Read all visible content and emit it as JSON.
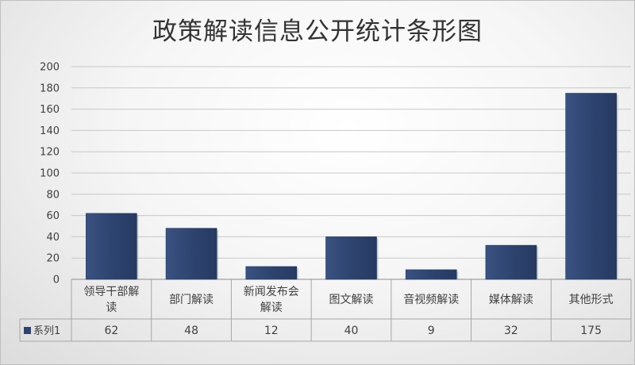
{
  "chart_data": {
    "type": "bar",
    "title": "政策解读信息公开统计条形图",
    "categories": [
      "领导干部解读",
      "部门解读",
      "新闻发布会解读",
      "图文解读",
      "音视频解读",
      "媒体解读",
      "其他形式"
    ],
    "category_lines": [
      [
        "领导干部解",
        "读"
      ],
      [
        "部门解读"
      ],
      [
        "新闻发布会",
        "解读"
      ],
      [
        "图文解读"
      ],
      [
        "音视频解读"
      ],
      [
        "媒体解读"
      ],
      [
        "其他形式"
      ]
    ],
    "series": [
      {
        "name": "系列1",
        "values": [
          62,
          48,
          12,
          40,
          9,
          32,
          175
        ],
        "color": "#2e4470"
      }
    ],
    "ylim": [
      0,
      200
    ],
    "yticks": [
      0,
      20,
      40,
      60,
      80,
      100,
      120,
      140,
      160,
      180,
      200
    ],
    "grid": true,
    "data_table": true,
    "legend": "data-table-left"
  }
}
